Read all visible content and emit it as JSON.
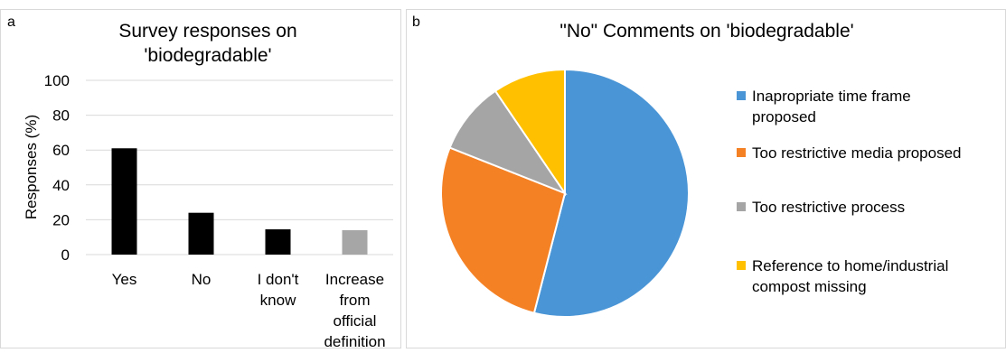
{
  "panels": [
    {
      "label": "a"
    },
    {
      "label": "b"
    }
  ],
  "chart_data": [
    {
      "type": "bar",
      "title": "Survey responses on 'biodegradable'",
      "title_lines": [
        "Survey responses on",
        "'biodegradable'"
      ],
      "xlabel": "",
      "ylabel": "Responses (%)",
      "ylim": [
        0,
        100
      ],
      "yticks": [
        "0",
        "20",
        "40",
        "60",
        "80",
        "100"
      ],
      "ytick_values": [
        0,
        20,
        40,
        60,
        80,
        100
      ],
      "grid": true,
      "categories": [
        "Yes",
        "No",
        "I don't know",
        "Increase from official definition"
      ],
      "category_lines": [
        [
          "Yes"
        ],
        [
          "No"
        ],
        [
          "I don't",
          "know"
        ],
        [
          "Increase",
          "from",
          "official",
          "definition"
        ]
      ],
      "values": [
        61,
        24,
        14.5,
        14
      ],
      "colors": [
        "#000000",
        "#000000",
        "#000000",
        "#a6a6a6"
      ]
    },
    {
      "type": "pie",
      "title": "\"No\" Comments on 'biodegradable'",
      "categories": [
        "Inapropriate time frame proposed",
        "Too restrictive media proposed",
        "Too restrictive process",
        "Reference to home/industrial compost missing"
      ],
      "legend_lines": [
        [
          "Inapropriate time frame",
          "proposed"
        ],
        [
          "Too restrictive media proposed"
        ],
        [
          "Too restrictive process"
        ],
        [
          "Reference to home/industrial",
          "compost missing"
        ]
      ],
      "values": [
        54,
        27,
        9.5,
        9.5
      ],
      "colors": [
        "#4a95d6",
        "#f58125",
        "#a5a5a5",
        "#ffc000"
      ],
      "legend": "right"
    }
  ]
}
